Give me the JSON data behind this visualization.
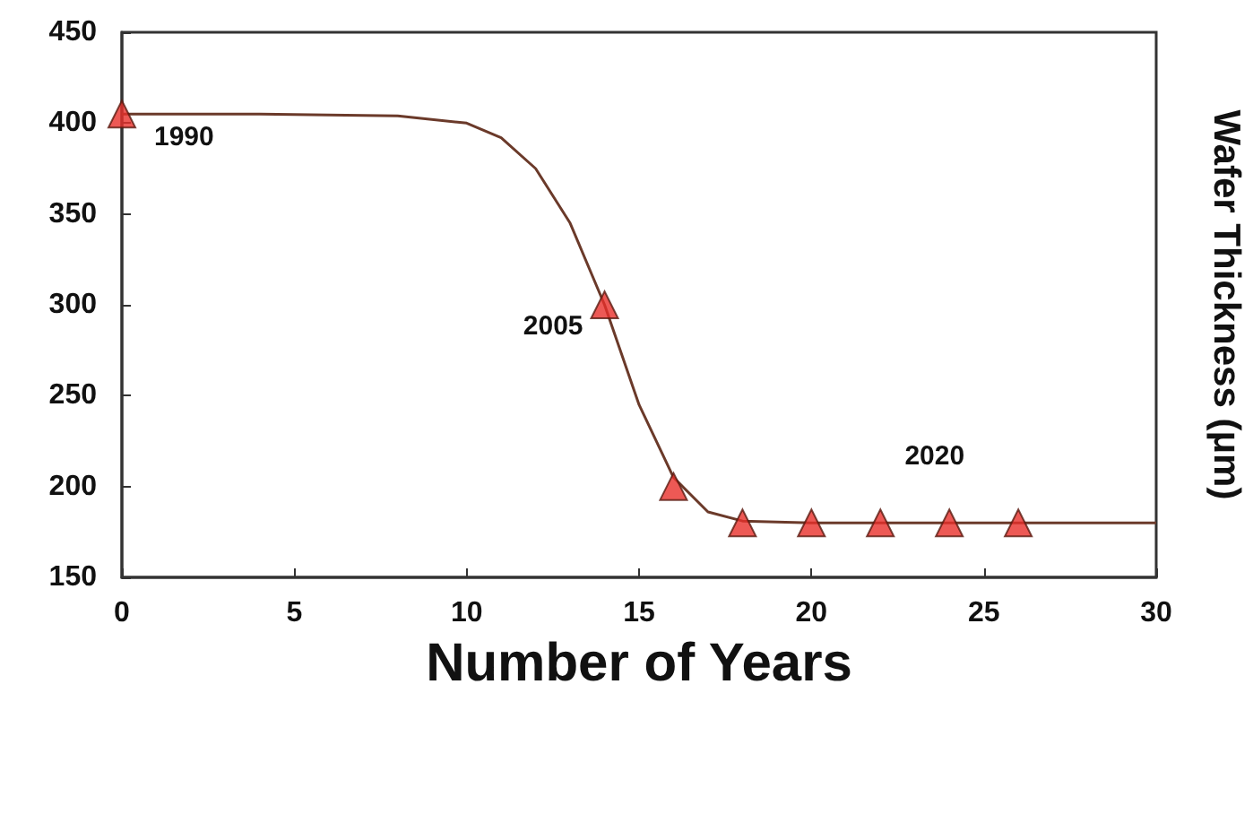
{
  "chart_data": {
    "type": "scatter",
    "xlabel": "Number of Years",
    "ylabel": "Wafer Thickness (μm)",
    "xlim": [
      0,
      30
    ],
    "xticks": [
      0,
      5,
      10,
      15,
      20,
      25,
      30
    ],
    "ylim": [
      150,
      450
    ],
    "yticks": [
      150,
      200,
      250,
      300,
      350,
      400,
      450
    ],
    "grid": false,
    "series": [
      {
        "type": "line",
        "color": "#6b3a2a",
        "marker": "none",
        "line_style": "solid",
        "x": [
          0,
          4,
          8,
          10,
          11,
          12,
          13,
          14,
          15,
          16,
          17,
          18,
          20,
          25,
          30
        ],
        "values": [
          405,
          405,
          404,
          400,
          392,
          375,
          345,
          300,
          245,
          205,
          186,
          181,
          180,
          180,
          180
        ]
      },
      {
        "color": "#e8302a",
        "marker": "triangle",
        "x": [
          0,
          14,
          16,
          18,
          20,
          22,
          24,
          26
        ],
        "values": [
          405,
          300,
          200,
          180,
          180,
          180,
          180,
          180
        ]
      }
    ],
    "annotations": [
      {
        "text": "1990",
        "x": 0,
        "y": 405
      },
      {
        "text": "2005",
        "x": 14,
        "y": 300
      },
      {
        "text": "2020",
        "x": 26,
        "y": 180
      }
    ]
  }
}
